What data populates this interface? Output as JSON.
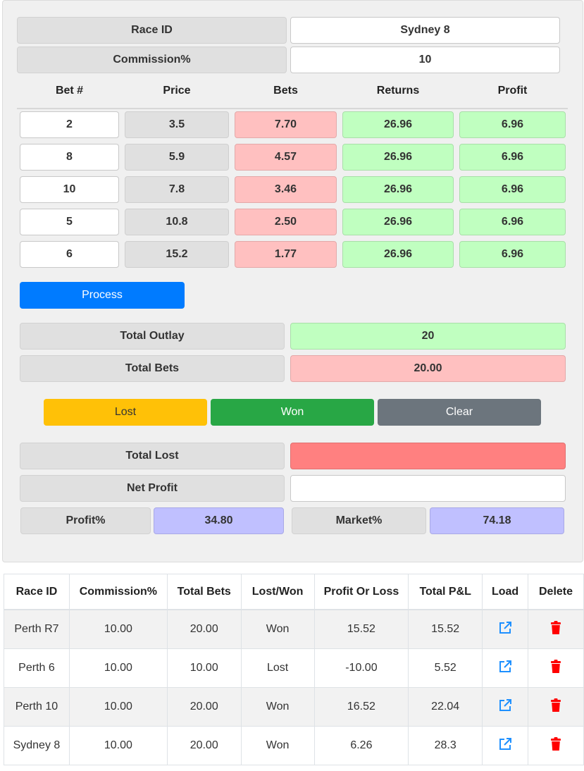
{
  "race": {
    "id_label": "Race ID",
    "id_value": "Sydney 8",
    "commission_label": "Commission%",
    "commission_value": "10"
  },
  "bets_table": {
    "headers": [
      "Bet #",
      "Price",
      "Bets",
      "Returns",
      "Profit"
    ],
    "rows": [
      {
        "bet": "2",
        "price": "3.5",
        "bets": "7.70",
        "returns": "26.96",
        "profit": "6.96"
      },
      {
        "bet": "8",
        "price": "5.9",
        "bets": "4.57",
        "returns": "26.96",
        "profit": "6.96"
      },
      {
        "bet": "10",
        "price": "7.8",
        "bets": "3.46",
        "returns": "26.96",
        "profit": "6.96"
      },
      {
        "bet": "5",
        "price": "10.8",
        "bets": "2.50",
        "returns": "26.96",
        "profit": "6.96"
      },
      {
        "bet": "6",
        "price": "15.2",
        "bets": "1.77",
        "returns": "26.96",
        "profit": "6.96"
      }
    ]
  },
  "process_label": "Process",
  "totals": {
    "outlay_label": "Total Outlay",
    "outlay_value": "20",
    "bets_label": "Total Bets",
    "bets_value": "20.00"
  },
  "actions": {
    "lost": "Lost",
    "won": "Won",
    "clear": "Clear"
  },
  "result": {
    "total_lost_label": "Total Lost",
    "total_lost_value": "",
    "net_profit_label": "Net Profit",
    "net_profit_value": "",
    "profit_pct_label": "Profit%",
    "profit_pct_value": "34.80",
    "market_pct_label": "Market%",
    "market_pct_value": "74.18"
  },
  "log": {
    "headers": [
      "Race ID",
      "Commission%",
      "Total Bets",
      "Lost/Won",
      "Profit Or Loss",
      "Total P&L",
      "Load",
      "Delete"
    ],
    "rows": [
      {
        "race": "Perth R7",
        "commission": "10.00",
        "total_bets": "20.00",
        "result": "Won",
        "pl": "15.52",
        "total_pl": "15.52"
      },
      {
        "race": "Perth 6",
        "commission": "10.00",
        "total_bets": "10.00",
        "result": "Lost",
        "pl": "-10.00",
        "total_pl": "5.52"
      },
      {
        "race": "Perth 10",
        "commission": "10.00",
        "total_bets": "20.00",
        "result": "Won",
        "pl": "16.52",
        "total_pl": "22.04"
      },
      {
        "race": "Sydney 8",
        "commission": "10.00",
        "total_bets": "20.00",
        "result": "Won",
        "pl": "6.26",
        "total_pl": "28.3"
      }
    ]
  },
  "colors": {
    "primary": "#007bff",
    "warning": "#ffc107",
    "success": "#28a745",
    "secondary": "#6c757d",
    "delete_red": "#ff0000",
    "load_blue": "#1e90ff"
  },
  "icons": {
    "load": "external-link-icon",
    "delete": "trash-icon"
  }
}
